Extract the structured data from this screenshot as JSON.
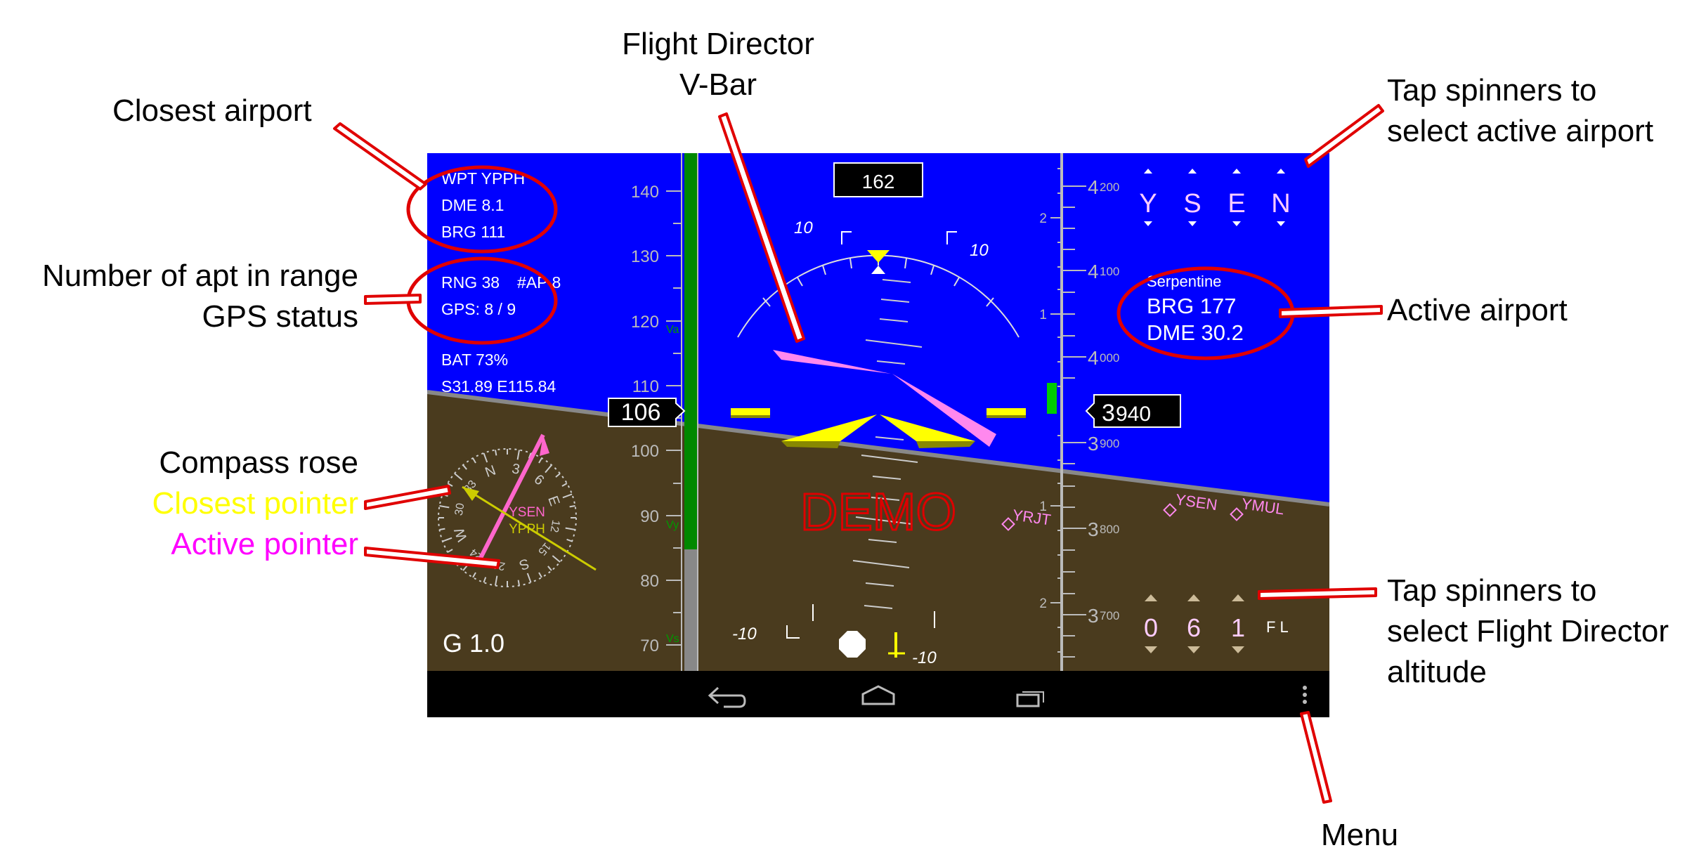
{
  "annotations": {
    "flight_director_line1": "Flight Director",
    "flight_director_line2": "V-Bar",
    "closest_airport": "Closest airport",
    "num_apt_line1": "Number of apt in range",
    "num_apt_line2": "GPS status",
    "compass_rose": "Compass rose",
    "closest_pointer": "Closest pointer",
    "active_pointer": "Active pointer",
    "tap_spinners_airport_line1": "Tap spinners to",
    "tap_spinners_airport_line2": "select active airport",
    "active_airport": "Active airport",
    "tap_spinners_fd_line1": "Tap spinners to",
    "tap_spinners_fd_line2": "select Flight Director",
    "tap_spinners_fd_line3": "altitude",
    "menu": "Menu"
  },
  "info": {
    "wpt": "WPT YPPH",
    "dme": "DME 8.1",
    "brg": "BRG  111",
    "rng": "RNG 38",
    "num_ap": "#AP 8",
    "gps": "GPS:  8 / 9",
    "bat": "BAT  73%",
    "position": "S31.89 E115.84",
    "g_load": "G 1.0"
  },
  "compass": {
    "ticks": [
      "3",
      "6",
      "E",
      "12",
      "15",
      "S",
      "21",
      "24",
      "W",
      "30",
      "33",
      "N"
    ],
    "active_label": "YSEN",
    "closest_label": "YPPH",
    "active_color": "#ff66cc",
    "closest_color": "#cccc00"
  },
  "speed_tape": {
    "labels": [
      "140",
      "130",
      "120",
      "110",
      "100",
      "90",
      "80",
      "70"
    ],
    "va_label": "Va",
    "vy_label": "Vy",
    "vs_label": "Vs",
    "current": "106"
  },
  "heading": {
    "value": "162"
  },
  "attitude": {
    "pitch_left_10": "10",
    "pitch_right_10": "10",
    "pitch_left_neg10": "-10",
    "pitch_right_neg10": "-10",
    "demo_text": "DEMO",
    "fd_color": "#ff88ee",
    "sky_color": "#0000ff",
    "ground_color": "#4a3b1e"
  },
  "vsi": {
    "labels": [
      "2",
      "1",
      "1",
      "2"
    ]
  },
  "altitude_tape": {
    "labels_big": [
      "4",
      "4",
      "4",
      "3",
      "3",
      "3"
    ],
    "labels_small": [
      "200",
      "100",
      "000",
      "900",
      "800",
      "700"
    ],
    "current_big": "3",
    "current_small": "940"
  },
  "airport_spinners": {
    "letters": [
      "Y",
      "S",
      "E",
      "N"
    ]
  },
  "active_airport": {
    "name": "Serpentine",
    "brg": "BRG  177",
    "dme": "DME 30.2"
  },
  "horizon_airports": {
    "yrjt": "YRJT",
    "ysen": "YSEN",
    "ymul": "YMUL"
  },
  "fd_altitude_spinners": {
    "digits": [
      "0",
      "6",
      "1"
    ],
    "unit": "F L"
  }
}
